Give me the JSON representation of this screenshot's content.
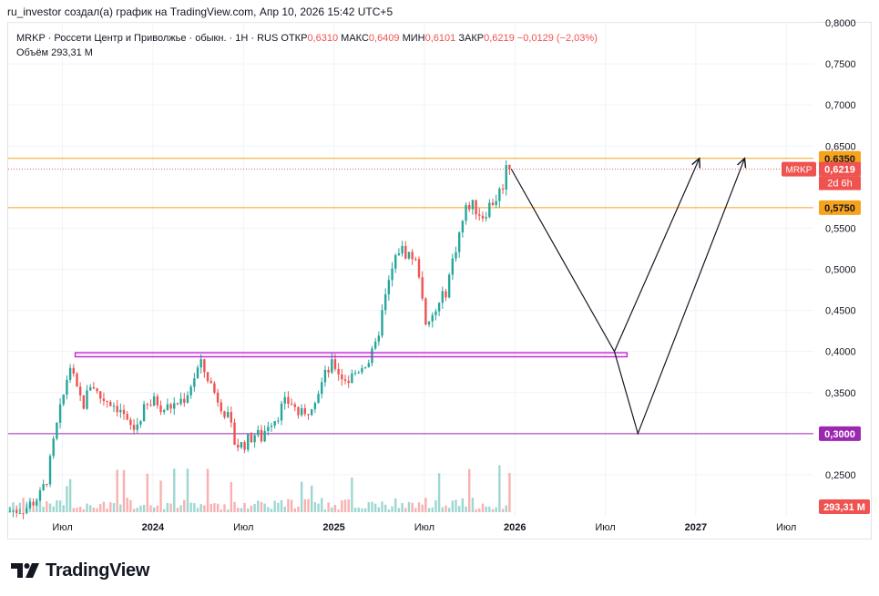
{
  "header": {
    "text": "ru_investor создал(а) график на TradingView.com, Апр 10, 2026 15:42 UTC+5"
  },
  "legend": {
    "symbol": "MRKP · Россети Центр и Приволжье · обыкн. · 1Н · RUS",
    "open_label": "ОТКР",
    "open_value": "0,6310",
    "high_label": "МАКС",
    "high_value": "0,6409",
    "low_label": "МИН",
    "low_value": "0,6101",
    "close_label": "ЗАКР",
    "close_value": "0,6219",
    "change": "−0,0129 (−2,03%)",
    "volume_label": "Объём",
    "volume_value": "293,31 M"
  },
  "footer": {
    "brand": "TradingView"
  },
  "colors": {
    "up": "#26a69a",
    "down": "#ef5350",
    "orange": "#f7a21b",
    "purple": "#9c27b0",
    "grid": "#f0f3fa"
  },
  "chart_data": {
    "type": "candlestick",
    "title": "MRKP · Россети Центр и Приволжье · обыкн. · 1Н · RUS",
    "y_axis": {
      "min": 0.2,
      "max": 0.8,
      "ticks": [
        {
          "value": 0.8,
          "label": "0,8000"
        },
        {
          "value": 0.75,
          "label": "0,7500"
        },
        {
          "value": 0.7,
          "label": "0,7000"
        },
        {
          "value": 0.65,
          "label": "0,6500"
        },
        {
          "value": 0.55,
          "label": "0,5500"
        },
        {
          "value": 0.5,
          "label": "0,5000"
        },
        {
          "value": 0.45,
          "label": "0,4500"
        },
        {
          "value": 0.4,
          "label": "0,4000"
        },
        {
          "value": 0.35,
          "label": "0,3500"
        },
        {
          "value": 0.25,
          "label": "0,2500"
        }
      ]
    },
    "x_axis": {
      "min": 2023.2,
      "max": 2027.65,
      "ticks": [
        {
          "t": 2023.5,
          "label": "Июл",
          "bold": false
        },
        {
          "t": 2024.0,
          "label": "2024",
          "bold": true
        },
        {
          "t": 2024.5,
          "label": "Июл",
          "bold": false
        },
        {
          "t": 2025.0,
          "label": "2025",
          "bold": true
        },
        {
          "t": 2025.5,
          "label": "Июл",
          "bold": false
        },
        {
          "t": 2026.0,
          "label": "2026",
          "bold": true
        },
        {
          "t": 2026.5,
          "label": "Июл",
          "bold": false
        },
        {
          "t": 2027.0,
          "label": "2027",
          "bold": true
        },
        {
          "t": 2027.5,
          "label": "Июл",
          "bold": false
        }
      ]
    },
    "price_path": [
      [
        2023.2,
        0.205
      ],
      [
        2023.3,
        0.21
      ],
      [
        2023.38,
        0.225
      ],
      [
        2023.42,
        0.25
      ],
      [
        2023.46,
        0.3
      ],
      [
        2023.5,
        0.34
      ],
      [
        2023.54,
        0.385
      ],
      [
        2023.58,
        0.35
      ],
      [
        2023.62,
        0.335
      ],
      [
        2023.66,
        0.365
      ],
      [
        2023.7,
        0.345
      ],
      [
        2023.76,
        0.34
      ],
      [
        2023.82,
        0.33
      ],
      [
        2023.86,
        0.31
      ],
      [
        2023.9,
        0.305
      ],
      [
        2023.94,
        0.325
      ],
      [
        2023.98,
        0.335
      ],
      [
        2024.02,
        0.34
      ],
      [
        2024.06,
        0.33
      ],
      [
        2024.12,
        0.335
      ],
      [
        2024.18,
        0.345
      ],
      [
        2024.22,
        0.365
      ],
      [
        2024.26,
        0.385
      ],
      [
        2024.3,
        0.37
      ],
      [
        2024.34,
        0.35
      ],
      [
        2024.38,
        0.335
      ],
      [
        2024.42,
        0.315
      ],
      [
        2024.45,
        0.29
      ],
      [
        2024.48,
        0.285
      ],
      [
        2024.52,
        0.29
      ],
      [
        2024.56,
        0.3
      ],
      [
        2024.6,
        0.295
      ],
      [
        2024.64,
        0.315
      ],
      [
        2024.68,
        0.32
      ],
      [
        2024.72,
        0.335
      ],
      [
        2024.76,
        0.34
      ],
      [
        2024.8,
        0.325
      ],
      [
        2024.84,
        0.32
      ],
      [
        2024.88,
        0.34
      ],
      [
        2024.92,
        0.355
      ],
      [
        2024.96,
        0.375
      ],
      [
        2025.0,
        0.385
      ],
      [
        2025.04,
        0.37
      ],
      [
        2025.08,
        0.365
      ],
      [
        2025.12,
        0.375
      ],
      [
        2025.16,
        0.385
      ],
      [
        2025.2,
        0.39
      ],
      [
        2025.23,
        0.405
      ],
      [
        2025.26,
        0.44
      ],
      [
        2025.3,
        0.48
      ],
      [
        2025.33,
        0.505
      ],
      [
        2025.36,
        0.525
      ],
      [
        2025.4,
        0.52
      ],
      [
        2025.44,
        0.515
      ],
      [
        2025.48,
        0.49
      ],
      [
        2025.51,
        0.42
      ],
      [
        2025.54,
        0.44
      ],
      [
        2025.58,
        0.455
      ],
      [
        2025.62,
        0.475
      ],
      [
        2025.66,
        0.515
      ],
      [
        2025.7,
        0.55
      ],
      [
        2025.74,
        0.58
      ],
      [
        2025.78,
        0.575
      ],
      [
        2025.82,
        0.565
      ],
      [
        2025.86,
        0.578
      ],
      [
        2025.9,
        0.588
      ],
      [
        2025.93,
        0.6
      ],
      [
        2025.96,
        0.632
      ],
      [
        2025.98,
        0.622
      ]
    ],
    "volume_axis": {
      "max": 450,
      "top_value": 0.2778,
      "bottom_value": 0.2044
    },
    "last_volume": 293.31,
    "horizontal_levels": [
      {
        "value": 0.635,
        "color": "#f7a21b",
        "label": "0,6350"
      },
      {
        "value": 0.575,
        "color": "#f7a21b",
        "label": "0,5750"
      },
      {
        "value": 0.3,
        "color": "#9c27b0",
        "label": "0,3000"
      },
      {
        "value": 0.6219,
        "color": "#ef5350",
        "label": "0,6219",
        "dotted": true
      }
    ],
    "symbol_badge": {
      "text": "MRKP",
      "price": "0,6219",
      "countdown": "2d 6h"
    },
    "volume_badge": "293,31 M",
    "resistance_box": {
      "t1": 2023.57,
      "t2": 2026.62,
      "v1": 0.3935,
      "v2": 0.3985
    },
    "forecast_path_1": [
      [
        2025.98,
        0.622
      ],
      [
        2026.55,
        0.4
      ],
      [
        2027.02,
        0.635
      ]
    ],
    "forecast_path_2": [
      [
        2026.55,
        0.4
      ],
      [
        2026.68,
        0.3
      ],
      [
        2027.27,
        0.635
      ]
    ]
  }
}
